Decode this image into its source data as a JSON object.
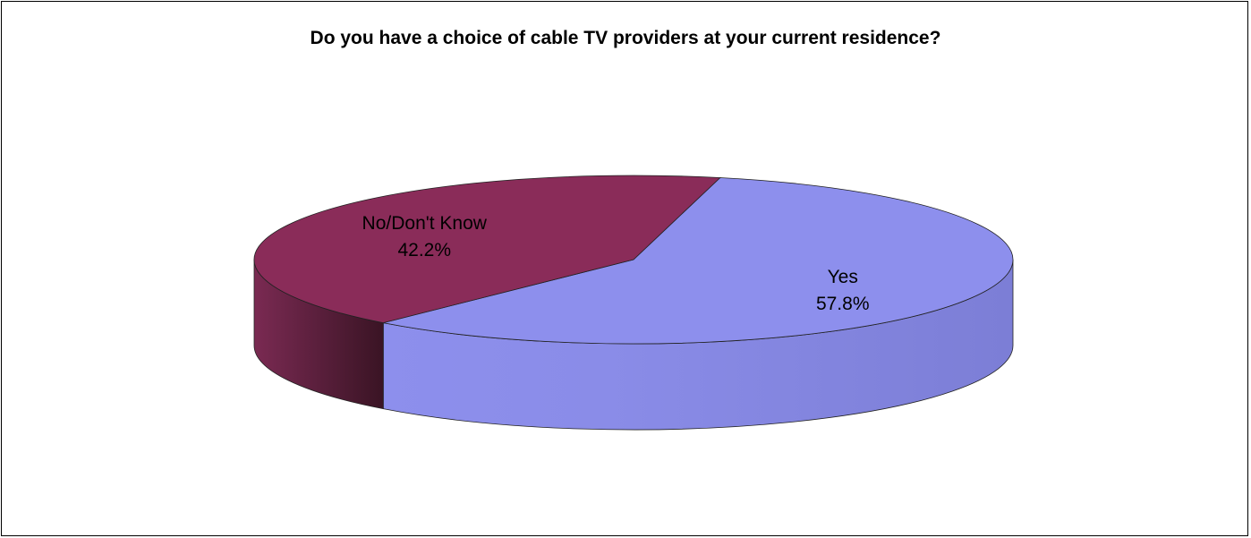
{
  "chart_data": {
    "type": "pie",
    "title": "Do you have a choice of cable TV providers at your current residence?",
    "slices": [
      {
        "label": "Yes",
        "value": 57.8,
        "value_label": "57.8%",
        "color": "#8d8fed"
      },
      {
        "label": "No/Don't Know",
        "value": 42.2,
        "value_label": "42.2%",
        "color": "#8a2c59"
      }
    ],
    "style": "3d-tilted",
    "legend": "none"
  }
}
